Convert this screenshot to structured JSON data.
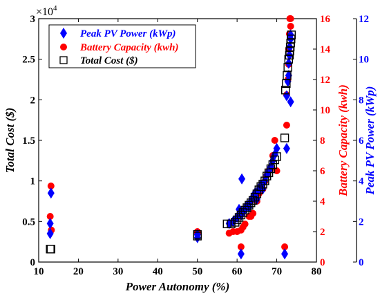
{
  "chart_data": {
    "type": "scatter",
    "x_axis": {
      "label": "Power Autonomy (%)",
      "range": [
        10,
        80
      ],
      "ticks": [
        10,
        20,
        30,
        40,
        50,
        60,
        70,
        80
      ],
      "tick_labels": [
        "10",
        "20",
        "30",
        "40",
        "50",
        "60",
        "70",
        "80"
      ]
    },
    "y_axes": [
      {
        "side": "left",
        "label": "Total Cost ($)",
        "range": [
          0,
          30000
        ],
        "tick_labels": [
          "0",
          "0.5",
          "1",
          "1.5",
          "2",
          "2.5",
          "3"
        ],
        "ticks": [
          0,
          5000,
          10000,
          15000,
          20000,
          25000,
          30000
        ],
        "multiplier": "×10",
        "multiplier_exp": "4",
        "color": "#000000"
      },
      {
        "side": "right-inner",
        "label": "Battery Capacity (kwh)",
        "range": [
          0,
          16
        ],
        "tick_labels": [
          "0",
          "2",
          "4",
          "6",
          "8",
          "10",
          "12",
          "14",
          "16"
        ],
        "ticks": [
          0,
          2,
          4,
          6,
          8,
          10,
          12,
          14,
          16
        ],
        "color": "#ff0000"
      },
      {
        "side": "right-outer",
        "label": "Peak PV Power (kWp)",
        "range": [
          0,
          12
        ],
        "tick_labels": [
          "0",
          "2",
          "4",
          "6",
          "8",
          "10",
          "12"
        ],
        "ticks": [
          0,
          2,
          4,
          6,
          8,
          10,
          12
        ],
        "color": "#0000ff"
      }
    ],
    "legend": {
      "placement": "top-left"
    },
    "grid": false,
    "series": [
      {
        "name": "Peak PV Power (kWp)",
        "marker": "diamond",
        "color": "#0000ff",
        "axis": "right-outer",
        "points": [
          [
            12.9,
            1.4
          ],
          [
            12.9,
            1.9
          ],
          [
            13.1,
            3.4
          ],
          [
            50,
            1.2
          ],
          [
            50,
            1.35
          ],
          [
            58,
            1.9
          ],
          [
            59,
            2
          ],
          [
            60,
            2.2
          ],
          [
            60.5,
            2.6
          ],
          [
            61,
            0.4
          ],
          [
            61,
            2.3
          ],
          [
            61.5,
            2.5
          ],
          [
            61.2,
            4.1
          ],
          [
            62,
            2.6
          ],
          [
            62.5,
            2.8
          ],
          [
            63,
            2.7
          ],
          [
            63.5,
            3
          ],
          [
            64,
            3.2
          ],
          [
            64.5,
            3.4
          ],
          [
            65,
            3.1
          ],
          [
            65.5,
            3.6
          ],
          [
            66,
            3.8
          ],
          [
            66.5,
            3.6
          ],
          [
            67,
            4
          ],
          [
            67.5,
            4.3
          ],
          [
            68,
            4.5
          ],
          [
            68.5,
            4.7
          ],
          [
            69,
            5
          ],
          [
            69.5,
            5.3
          ],
          [
            70,
            5.6
          ],
          [
            72,
            0.4
          ],
          [
            72.5,
            5.6
          ],
          [
            72.5,
            8.2
          ],
          [
            72.8,
            8.9
          ],
          [
            73,
            9.2
          ],
          [
            73,
            9.8
          ],
          [
            73.2,
            10.2
          ],
          [
            73.3,
            10.6
          ],
          [
            73.5,
            11
          ],
          [
            73.5,
            11.2
          ],
          [
            73.5,
            7.9
          ]
        ]
      },
      {
        "name": "Battery Capacity (kwh)",
        "marker": "circle",
        "color": "#ff0000",
        "axis": "right-inner",
        "points": [
          [
            12.9,
            3
          ],
          [
            13.1,
            5
          ],
          [
            13.2,
            2.1
          ],
          [
            50,
            1.9
          ],
          [
            50,
            2
          ],
          [
            58,
            1.9
          ],
          [
            59,
            2
          ],
          [
            60,
            2
          ],
          [
            61,
            1
          ],
          [
            61,
            2.1
          ],
          [
            61.5,
            2.3
          ],
          [
            62,
            2.5
          ],
          [
            63,
            3
          ],
          [
            63.5,
            3
          ],
          [
            64,
            3.2
          ],
          [
            65,
            4
          ],
          [
            65.5,
            4.5
          ],
          [
            66,
            5
          ],
          [
            66.5,
            4.8
          ],
          [
            67,
            5.3
          ],
          [
            67.5,
            5.7
          ],
          [
            68,
            6
          ],
          [
            68.5,
            6.2
          ],
          [
            69,
            7
          ],
          [
            69.5,
            8
          ],
          [
            70,
            6
          ],
          [
            72,
            1
          ],
          [
            72.5,
            9
          ],
          [
            72.5,
            11
          ],
          [
            72.8,
            12
          ],
          [
            73,
            13
          ],
          [
            73,
            14
          ],
          [
            73.2,
            15
          ],
          [
            73.3,
            16
          ],
          [
            73.5,
            15.5
          ],
          [
            73.5,
            16
          ]
        ]
      },
      {
        "name": "Total Cost ($)",
        "marker": "square",
        "color": "#000000",
        "axis": "left",
        "points": [
          [
            12.9,
            1600
          ],
          [
            13.1,
            1600
          ],
          [
            50,
            3200
          ],
          [
            50,
            3400
          ],
          [
            57.5,
            4700
          ],
          [
            58.5,
            4700
          ],
          [
            59.5,
            4900
          ],
          [
            60,
            5200
          ],
          [
            60.5,
            5500
          ],
          [
            61,
            5800
          ],
          [
            61.5,
            6100
          ],
          [
            62,
            6400
          ],
          [
            62.5,
            6700
          ],
          [
            63,
            7000
          ],
          [
            63.5,
            7300
          ],
          [
            64,
            7600
          ],
          [
            64.5,
            8000
          ],
          [
            65,
            8400
          ],
          [
            65.5,
            8900
          ],
          [
            66,
            9300
          ],
          [
            66.5,
            9600
          ],
          [
            67,
            10000
          ],
          [
            67.5,
            10600
          ],
          [
            68,
            11000
          ],
          [
            68.5,
            11500
          ],
          [
            69,
            12000
          ],
          [
            69.5,
            12600
          ],
          [
            70,
            13000
          ],
          [
            72,
            15300
          ],
          [
            72.2,
            21200
          ],
          [
            72.4,
            22000
          ],
          [
            72.6,
            23000
          ],
          [
            72.8,
            24000
          ],
          [
            73,
            25000
          ],
          [
            73.2,
            25500
          ],
          [
            73.3,
            26000
          ],
          [
            73.4,
            26500
          ],
          [
            73.5,
            27000
          ],
          [
            73.6,
            27500
          ],
          [
            73.7,
            28000
          ]
        ]
      }
    ]
  }
}
